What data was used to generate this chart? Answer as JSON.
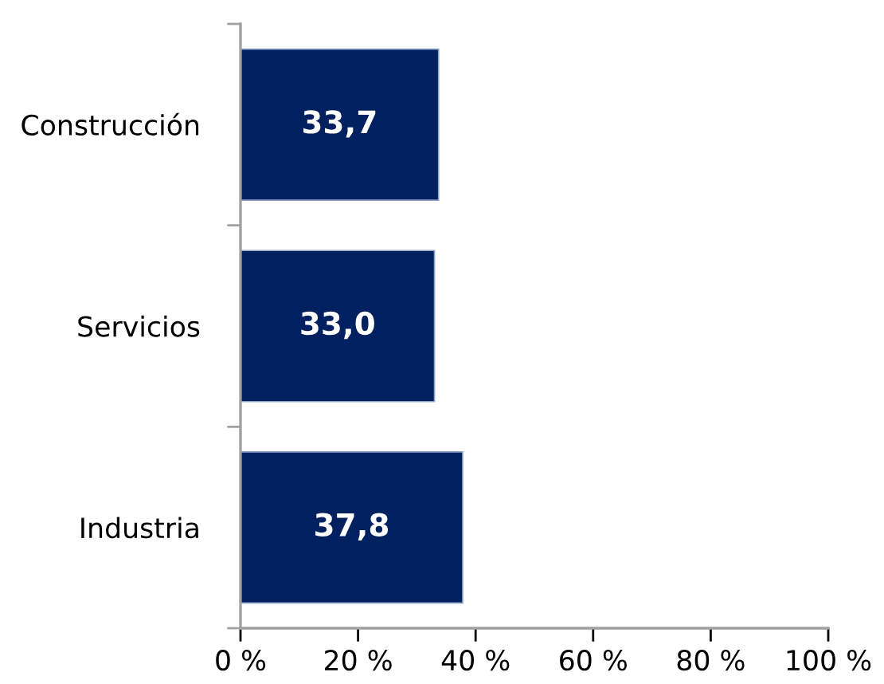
{
  "chart_data": {
    "type": "bar",
    "orientation": "horizontal",
    "categories": [
      "Construcción",
      "Servicios",
      "Industria"
    ],
    "values": [
      33.7,
      33.0,
      37.8
    ],
    "value_labels": [
      "33,7",
      "33,0",
      "37,8"
    ],
    "color": "#002060",
    "xlim": [
      0,
      100
    ],
    "xticks": [
      {
        "value": 0,
        "label": "0 %"
      },
      {
        "value": 20,
        "label": "20 %"
      },
      {
        "value": 40,
        "label": "40 %"
      },
      {
        "value": 60,
        "label": "60 %"
      },
      {
        "value": 80,
        "label": "80 %"
      },
      {
        "value": 100,
        "label": "100 %"
      }
    ],
    "grid": false
  }
}
